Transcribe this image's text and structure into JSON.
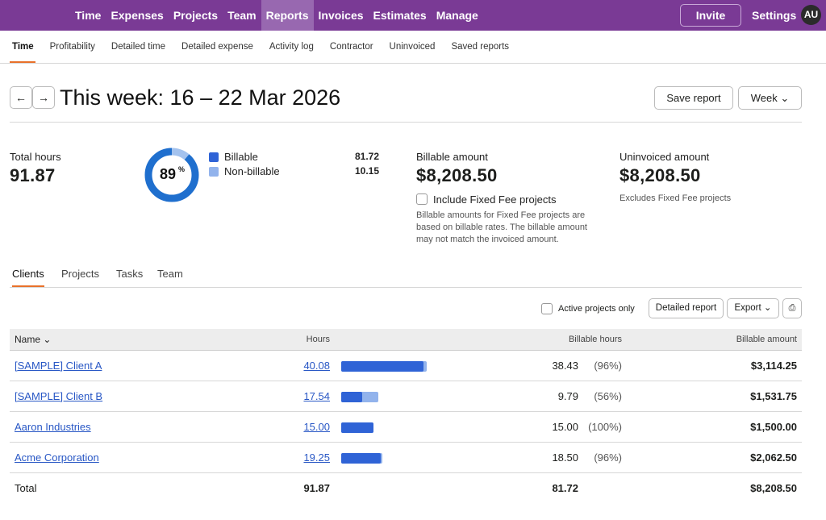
{
  "nav": {
    "items": [
      "Time",
      "Expenses",
      "Projects",
      "Team",
      "Reports",
      "Invoices",
      "Estimates",
      "Manage"
    ],
    "active": 4,
    "invite": "Invite",
    "settings": "Settings",
    "avatar": "AU"
  },
  "subnav": {
    "items": [
      "Time",
      "Profitability",
      "Detailed time",
      "Detailed expense",
      "Activity log",
      "Contractor",
      "Uninvoiced",
      "Saved reports"
    ],
    "active": 0
  },
  "header": {
    "title": "This week: 16 – 22 Mar 2026",
    "save": "Save report",
    "period": "Week"
  },
  "summary": {
    "total_label": "Total hours",
    "total_value": "91.87",
    "donut": {
      "percent": "89",
      "unit": "%"
    },
    "legend": [
      {
        "name": "Billable",
        "value": "81.72",
        "color": "#2f63d6"
      },
      {
        "name": "Non-billable",
        "value": "10.15",
        "color": "#92b3ec"
      }
    ],
    "billable": {
      "label": "Billable amount",
      "value": "$8,208.50",
      "checkbox": "Include Fixed Fee projects",
      "note": "Billable amounts for Fixed Fee projects are based on billable rates. The billable amount may not match the invoiced amount."
    },
    "uninvoiced": {
      "label": "Uninvoiced amount",
      "value": "$8,208.50",
      "note": "Excludes Fixed Fee projects"
    }
  },
  "tabs": {
    "items": [
      "Clients",
      "Projects",
      "Tasks",
      "Team"
    ],
    "active": 0
  },
  "toolbar": {
    "active_only": "Active projects only",
    "detailed": "Detailed report",
    "export": "Export"
  },
  "table": {
    "columns": [
      "Name",
      "Hours",
      "Billable hours",
      "Billable amount"
    ],
    "rows": [
      [
        "[SAMPLE] Client A",
        "40.08",
        "38.43",
        "(96%)",
        "$3,114.25"
      ],
      [
        "[SAMPLE] Client B",
        "17.54",
        "9.79",
        "(56%)",
        "$1,531.75"
      ],
      [
        "Aaron Industries",
        "15.00",
        "15.00",
        "(100%)",
        "$1,500.00"
      ],
      [
        "Acme Corporation",
        "19.25",
        "18.50",
        "(96%)",
        "$2,062.50"
      ]
    ],
    "total": [
      "Total",
      "91.87",
      "81.72",
      "$8,208.50"
    ]
  }
}
